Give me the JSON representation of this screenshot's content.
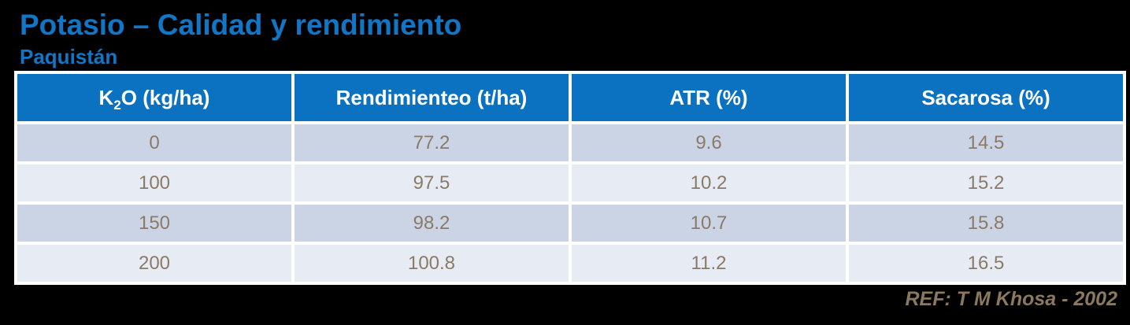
{
  "slide": {
    "title": "Potasio – Calidad y rendimiento",
    "subtitle": "Paquistán",
    "reference": "REF: T M Khosa - 2002"
  },
  "colors": {
    "background": "#000000",
    "title_blue": "#1176C5",
    "header_blue": "#0B72C1",
    "row_dark": "#CBD4E5",
    "row_light": "#E7EBF3",
    "cell_text": "#8B7A67",
    "reference_text": "#8A795E",
    "header_text": "#FFFFFF",
    "table_border": "#FFFFFF"
  },
  "table": {
    "columns": [
      {
        "label_pre": "K",
        "label_sub": "2",
        "label_post": "O (kg/ha)"
      },
      {
        "label": "Rendimienteo (t/ha)"
      },
      {
        "label": "ATR (%)"
      },
      {
        "label": "Sacarosa (%)"
      }
    ],
    "rows": [
      [
        "0",
        "77.2",
        "9.6",
        "14.5"
      ],
      [
        "100",
        "97.5",
        "10.2",
        "15.2"
      ],
      [
        "150",
        "98.2",
        "10.7",
        "15.8"
      ],
      [
        "200",
        "100.8",
        "11.2",
        "16.5"
      ]
    ]
  },
  "chart_data": {
    "type": "table",
    "title": "Potasio – Calidad y rendimiento",
    "subtitle": "Paquistán",
    "columns": [
      "K2O (kg/ha)",
      "Rendimienteo (t/ha)",
      "ATR (%)",
      "Sacarosa (%)"
    ],
    "rows": [
      [
        0,
        77.2,
        9.6,
        14.5
      ],
      [
        100,
        97.5,
        10.2,
        15.2
      ],
      [
        150,
        98.2,
        10.7,
        15.8
      ],
      [
        200,
        100.8,
        11.2,
        16.5
      ]
    ]
  }
}
